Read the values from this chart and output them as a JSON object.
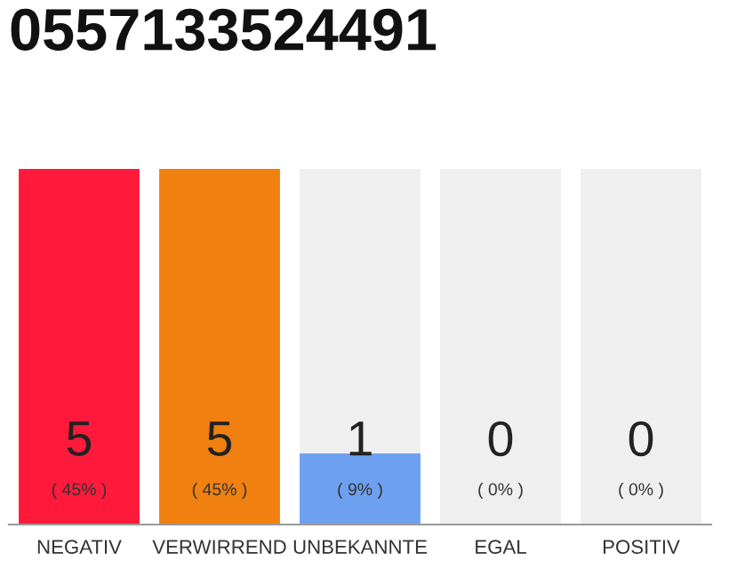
{
  "chart_data": {
    "type": "bar",
    "title": "0557133524491",
    "categories": [
      "NEGATIV",
      "VERWIRREND",
      "UNBEKANNTE",
      "EGAL",
      "POSITIV"
    ],
    "stacked": true,
    "series": [
      {
        "colors": [
          "#ff1a3c",
          "#f08010",
          "#6ea0f0",
          "#e8e8e8",
          "#e8e8e8"
        ],
        "values": [
          5,
          5,
          1,
          0,
          0
        ],
        "value_labels": [
          "5",
          "5",
          "1",
          null,
          null
        ]
      },
      {
        "color": "#efefef",
        "values": [
          0,
          0,
          4,
          5,
          5
        ]
      }
    ],
    "annotations": [
      "( 45% )",
      "( 45% )",
      "( 9% )",
      "( 0% )",
      "( 0% )",
      {
        "text": "0",
        "x": "EGAL",
        "y": 0
      },
      {
        "text": "0",
        "x": "POSITIV",
        "y": 0
      }
    ],
    "ylim": [
      0,
      5
    ],
    "tick_labels": "x",
    "grid": false,
    "legend": false
  }
}
